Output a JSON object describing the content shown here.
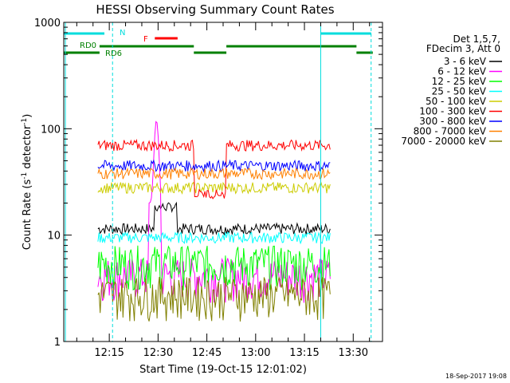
{
  "chart_data": {
    "type": "line",
    "title": "HESSI Observing Summary Count Rates",
    "xlabel": "Start Time (19-Oct-15 12:01:02)",
    "ylabel_main": "Count Rate (s",
    "ylabel_sup1": "-1",
    "ylabel_mid": " detector",
    "ylabel_sup2": "-1",
    "ylabel_end": ")",
    "x_unit": "minutes since 12:00",
    "xlim": [
      1,
      40
    ],
    "ylim": [
      1,
      1000
    ],
    "yscale": "log",
    "xticks": [
      {
        "v": 15,
        "label": "12:15"
      },
      {
        "v": 30,
        "label": "12:30"
      },
      {
        "v": 45,
        "label": "12:45"
      },
      {
        "v": 60,
        "label": "13:00"
      },
      {
        "v": 75,
        "label": "13:15"
      },
      {
        "v": 90,
        "label": "13:30"
      }
    ],
    "yticks": [
      {
        "v": 1,
        "label": "1"
      },
      {
        "v": 10,
        "label": "10"
      },
      {
        "v": 100,
        "label": "100"
      },
      {
        "v": 1000,
        "label": "1000"
      }
    ],
    "legend_header": [
      "Det 1,5,7,",
      "FDecim 3, Att 0"
    ],
    "legend_position": "right",
    "series": [
      {
        "name": "3 - 6 keV",
        "color": "#000000",
        "level": 11.5
      },
      {
        "name": "6 - 12 keV",
        "color": "#ff00ff",
        "level": 4.2
      },
      {
        "name": "12 - 25 keV",
        "color": "#00ff00",
        "level": 5.5
      },
      {
        "name": "25 - 50 keV",
        "color": "#00ffff",
        "level": 9.5
      },
      {
        "name": "50 - 100 keV",
        "color": "#cccc00",
        "level": 28
      },
      {
        "name": "100 - 300 keV",
        "color": "#ff0000",
        "level": 70
      },
      {
        "name": "300 - 800 keV",
        "color": "#0000ff",
        "level": 45
      },
      {
        "name": "800 - 7000 keV",
        "color": "#ff8000",
        "level": 38
      },
      {
        "name": "7000 - 20000 keV",
        "color": "#808000",
        "level": 2.8
      }
    ],
    "annotations": [
      {
        "label": "N",
        "color": "#00dddd"
      },
      {
        "label": "F",
        "color": "#ff0000"
      },
      {
        "label": "RD0",
        "color": "#008000"
      },
      {
        "label": "RD6",
        "color": "#008000"
      }
    ],
    "footer_date": "18-Sep-2017 19:08"
  }
}
